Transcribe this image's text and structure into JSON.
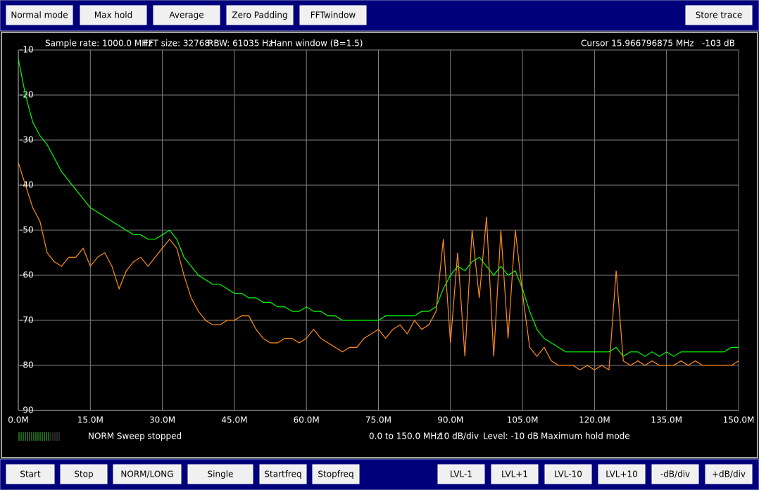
{
  "top_buttons": [
    "Normal mode",
    "Max hold",
    "Average",
    "Zero Padding",
    "FFTwindow",
    "Store trace"
  ],
  "bottom_buttons": [
    "Start",
    "Stop",
    "NORM/LONG",
    "Single",
    "Startfreq",
    "Stopfreq",
    "LVL-1",
    "LVL+1",
    "LVL-10",
    "LVL+10",
    "-dB/div",
    "+dB/div"
  ],
  "info": {
    "sample_rate": "Sample rate: 1000.0 MHz",
    "fft_size": "FFT size: 32768",
    "rbw": "RBW: 61035 Hz",
    "window": "Hann window (B=1.5)",
    "cursor": "Cursor 15.966796875 MHz   -103 dB"
  },
  "status": {
    "sweep": "NORM Sweep stopped",
    "span": "0.0 to 150.0 MHz",
    "scale": "10 dB/div",
    "level": "Level: -10 dB",
    "mode": "Maximum hold mode"
  },
  "chart_data": {
    "type": "line",
    "grid": true,
    "xlim": [
      0,
      150
    ],
    "ylim": [
      -90,
      -10
    ],
    "yticks": [
      -10,
      -20,
      -30,
      -40,
      -50,
      -60,
      -70,
      -80,
      -90
    ],
    "xticks": [
      {
        "value": 0,
        "label": "0.0M"
      },
      {
        "value": 15,
        "label": "15.0M"
      },
      {
        "value": 30,
        "label": "30.0M"
      },
      {
        "value": 45,
        "label": "45.0M"
      },
      {
        "value": 60,
        "label": "60.0M"
      },
      {
        "value": 75,
        "label": "75.0M"
      },
      {
        "value": 90,
        "label": "90.0M"
      },
      {
        "value": 105,
        "label": "105.0M"
      },
      {
        "value": 120,
        "label": "120.0M"
      },
      {
        "value": 135,
        "label": "135.0M"
      },
      {
        "value": 150,
        "label": "150.0M"
      }
    ],
    "x": [
      0,
      1.5,
      3,
      4.5,
      6,
      7.5,
      9,
      10.5,
      12,
      13.5,
      15,
      16.5,
      18,
      19.5,
      21,
      22.5,
      24,
      25.5,
      27,
      28.5,
      30,
      31.5,
      33,
      34.5,
      36,
      37.5,
      39,
      40.5,
      42,
      43.5,
      45,
      46.5,
      48,
      49.5,
      51,
      52.5,
      54,
      55.5,
      57,
      58.5,
      60,
      61.5,
      63,
      64.5,
      66,
      67.5,
      69,
      70.5,
      72,
      73.5,
      75,
      76.5,
      78,
      79.5,
      81,
      82.5,
      84,
      85.5,
      87,
      88.5,
      90,
      91.5,
      93,
      94.5,
      96,
      97.5,
      99,
      100.5,
      102,
      103.5,
      105,
      106.5,
      108,
      109.5,
      111,
      112.5,
      114,
      115.5,
      117,
      118.5,
      120,
      121.5,
      123,
      124.5,
      126,
      127.5,
      129,
      130.5,
      132,
      133.5,
      135,
      136.5,
      138,
      139.5,
      141,
      142.5,
      144,
      145.5,
      147,
      148.5,
      150
    ],
    "series": [
      {
        "color": "#00ff00",
        "values": [
          -12,
          -20,
          -26,
          -29,
          -31,
          -34,
          -37,
          -39,
          -41,
          -43,
          -45,
          -46,
          -47,
          -48,
          -49,
          -50,
          -51,
          -51,
          -52,
          -52,
          -51,
          -50,
          -52,
          -56,
          -58,
          -60,
          -61,
          -62,
          -62,
          -63,
          -64,
          -64,
          -65,
          -65,
          -66,
          -66,
          -67,
          -67,
          -68,
          -68,
          -67,
          -68,
          -68,
          -69,
          -69,
          -70,
          -70,
          -70,
          -70,
          -70,
          -70,
          -69,
          -69,
          -69,
          -69,
          -69,
          -68,
          -68,
          -67,
          -63,
          -60,
          -58,
          -59,
          -57,
          -56,
          -58,
          -60,
          -58,
          -60,
          -59,
          -63,
          -68,
          -72,
          -74,
          -75,
          -76,
          -77,
          -77,
          -77,
          -77,
          -77,
          -77,
          -77,
          -76,
          -78,
          -77,
          -77,
          -78,
          -77,
          -78,
          -77,
          -78,
          -77,
          -77,
          -77,
          -77,
          -77,
          -77,
          -77,
          -76,
          -76
        ]
      },
      {
        "color": "#ff8c1a",
        "values": [
          -35,
          -40,
          -45,
          -48,
          -55,
          -57,
          -58,
          -56,
          -56,
          -54,
          -58,
          -56,
          -55,
          -58,
          -63,
          -59,
          -57,
          -56,
          -58,
          -56,
          -54,
          -52,
          -54,
          -60,
          -65,
          -68,
          -70,
          -71,
          -71,
          -70,
          -70,
          -69,
          -69,
          -72,
          -74,
          -75,
          -75,
          -74,
          -74,
          -75,
          -74,
          -72,
          -74,
          -75,
          -76,
          -77,
          -76,
          -76,
          -74,
          -73,
          -72,
          -74,
          -72,
          -71,
          -73,
          -70,
          -72,
          -71,
          -68,
          -52,
          -75,
          -55,
          -78,
          -50,
          -65,
          -47,
          -78,
          -50,
          -74,
          -50,
          -64,
          -76,
          -78,
          -76,
          -79,
          -80,
          -80,
          -80,
          -81,
          -80,
          -81,
          -80,
          -81,
          -59,
          -79,
          -80,
          -79,
          -80,
          -79,
          -80,
          -80,
          -80,
          -79,
          -80,
          -79,
          -80,
          -80,
          -80,
          -80,
          -80,
          -79
        ]
      }
    ]
  }
}
